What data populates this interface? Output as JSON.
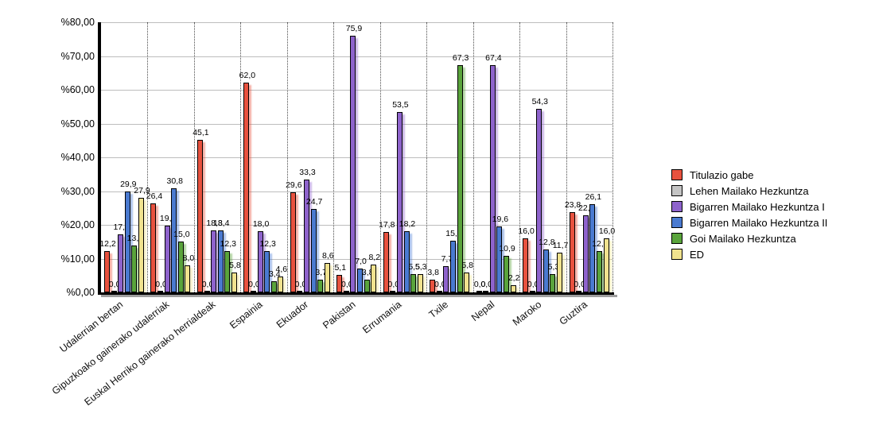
{
  "chart_data": {
    "type": "bar",
    "title": "",
    "xlabel": "",
    "ylabel": "",
    "ylim": [
      0,
      80
    ],
    "y_tick_labels": [
      "%80,00",
      "%70,00",
      "%60,00",
      "%50,00",
      "%40,00",
      "%30,00",
      "%20,00",
      "%10,00",
      "%0,00"
    ],
    "grid": "horizontal solid gray lines, dotted vertical category separators",
    "legend_position": "right",
    "value_label_format": "one decimal, comma separator",
    "categories": [
      "Udalerrian bertan",
      "Gipuzkoako gainerako udalerriak",
      "Euskal Herriko gainerako herrialdeak",
      "Espainia",
      "Ekuador",
      "Pakistan",
      "Errumania",
      "Txile",
      "Nepal",
      "Maroko",
      "Guztira"
    ],
    "series": [
      {
        "name": "Titulazio gabe",
        "color": "#e8523f",
        "values": [
          12.2,
          26.4,
          45.1,
          62.0,
          29.6,
          5.1,
          17.8,
          3.8,
          0.0,
          16.0,
          23.8
        ]
      },
      {
        "name": "Lehen Mailako Hezkuntza",
        "color": "#c4c4c4",
        "values": [
          0.0,
          0.0,
          0.0,
          0.0,
          0.0,
          0.0,
          0.0,
          0.0,
          0.0,
          0.0,
          0.0
        ]
      },
      {
        "name": "Bigarren Mailako Hezkuntza I",
        "color": "#8e63cc",
        "values": [
          17.2,
          19.7,
          18.3,
          18.0,
          33.3,
          75.9,
          53.5,
          7.7,
          67.4,
          54.3,
          22.8
        ]
      },
      {
        "name": "Bigarren Mailako Hezkuntza II",
        "color": "#4a7ad0",
        "values": [
          29.9,
          30.8,
          18.4,
          12.3,
          24.7,
          7.0,
          18.2,
          15.4,
          19.6,
          12.8,
          26.1
        ]
      },
      {
        "name": "Goi Mailako Hezkuntza",
        "color": "#5aa43c",
        "values": [
          13.8,
          15.0,
          12.3,
          3.4,
          3.7,
          3.8,
          5.5,
          67.3,
          10.9,
          5.3,
          12.2
        ]
      },
      {
        "name": "ED",
        "color": "#f0e28e",
        "values": [
          27.9,
          8.0,
          5.8,
          4.6,
          8.6,
          8.2,
          5.3,
          5.8,
          2.2,
          11.7,
          16.0
        ]
      }
    ]
  }
}
